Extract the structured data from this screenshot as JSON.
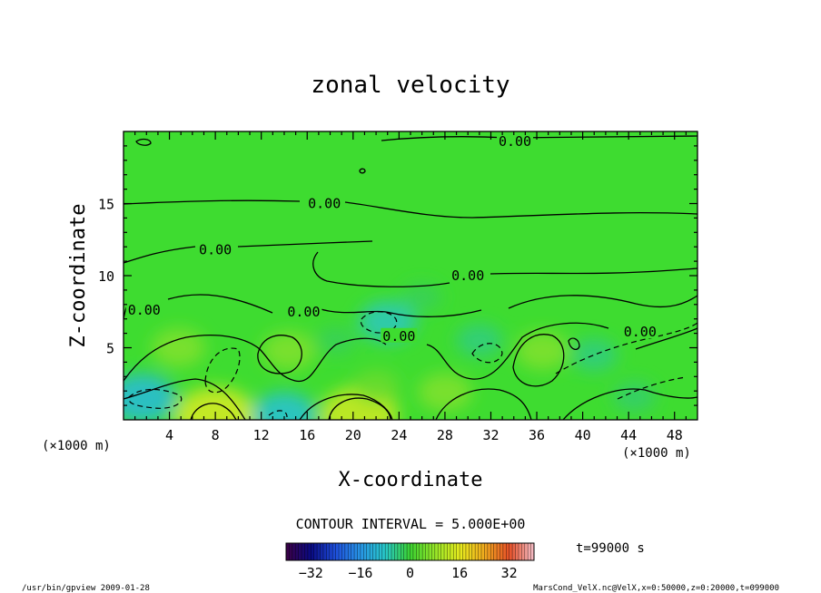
{
  "chart_data": {
    "type": "heatmap",
    "title": "zonal velocity",
    "xlabel": "X-coordinate",
    "ylabel": "Z-coordinate",
    "x_unit": "(×1000 m)",
    "y_unit": "(×1000 m)",
    "xlim": [
      0,
      50
    ],
    "ylim": [
      0,
      20
    ],
    "x_ticks": [
      4,
      8,
      12,
      16,
      20,
      24,
      28,
      32,
      36,
      40,
      44,
      48
    ],
    "y_ticks": [
      5,
      10,
      15
    ],
    "contour_interval_label": "CONTOUR INTERVAL = 5.000E+00",
    "contour_labels": [
      {
        "text": "0.00",
        "x": 34.1,
        "z": 19.3
      },
      {
        "text": "0.00",
        "x": 17.5,
        "z": 15.0
      },
      {
        "text": "0.00",
        "x": 8.0,
        "z": 11.8
      },
      {
        "text": "0.00",
        "x": 30.0,
        "z": 10.0
      },
      {
        "text": "0.00",
        "x": 1.8,
        "z": 7.6
      },
      {
        "text": "0.00",
        "x": 15.7,
        "z": 7.5
      },
      {
        "text": "0.00",
        "x": 24.0,
        "z": 5.8
      },
      {
        "text": "0.00",
        "x": 45.0,
        "z": 6.1
      }
    ],
    "time_label": "t=99000 s",
    "colorbar": {
      "range": [
        -40,
        40
      ],
      "ticks": [
        -32,
        -16,
        0,
        16,
        32
      ]
    },
    "field_blobs": [
      {
        "x": 8.0,
        "z": 0.2,
        "v": 14
      },
      {
        "x": 20.5,
        "z": 0.3,
        "v": 13
      },
      {
        "x": 4.8,
        "z": 5.0,
        "v": 6
      },
      {
        "x": 14.4,
        "z": 4.8,
        "v": 6
      },
      {
        "x": 36.5,
        "z": 4.8,
        "v": 6
      },
      {
        "x": 28.0,
        "z": 1.9,
        "v": 6
      },
      {
        "x": 22.0,
        "z": 2.3,
        "v": 4
      },
      {
        "x": 1.6,
        "z": 1.5,
        "v": -10
      },
      {
        "x": 14.0,
        "z": 0.3,
        "v": -9
      },
      {
        "x": 23.0,
        "z": 6.8,
        "v": -7
      },
      {
        "x": 31.0,
        "z": 5.5,
        "v": -4
      },
      {
        "x": 41.0,
        "z": 4.5,
        "v": -4
      },
      {
        "x": 44.5,
        "z": 1.6,
        "v": -3
      },
      {
        "x": 18.5,
        "z": 5.5,
        "v": -2
      },
      {
        "x": 26.0,
        "z": 8.5,
        "v": -2
      }
    ]
  },
  "footer": {
    "left": "/usr/bin/gpview  2009-01-28",
    "right": "MarsCond_VelX.nc@VelX,x=0:50000,z=0:20000,t=099000"
  }
}
